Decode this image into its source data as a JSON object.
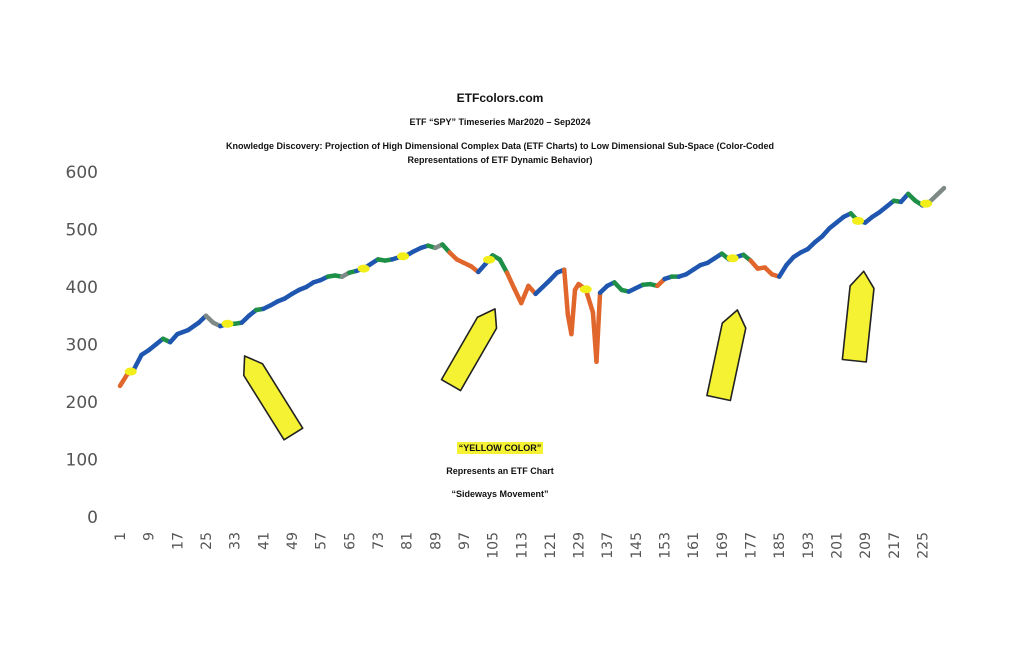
{
  "header": {
    "site": "ETFcolors.com",
    "subtitle": "ETF “SPY” Timeseries Mar2020 – Sep2024",
    "description": "Knowledge Discovery: Projection of High Dimensional Complex Data (ETF Charts) to Low Dimensional Sub-Space (Color-Coded Representations of ETF Dynamic Behavior)"
  },
  "annotation": {
    "label": "“YELLOW COLOR”",
    "line2": "Represents an ETF Chart",
    "line3": "“Sideways Movement”"
  },
  "colors": {
    "blue": "#1f56b0",
    "green": "#1e8f47",
    "orange": "#e0662c",
    "gray": "#7f8a86",
    "yellow": "#f5f233",
    "marker": "#f2ee1a"
  },
  "chart_data": {
    "type": "line",
    "ylim": [
      0,
      600
    ],
    "yticks": [
      0,
      100,
      200,
      300,
      400,
      500,
      600
    ],
    "xlim": [
      1,
      231
    ],
    "xticks": [
      1,
      9,
      17,
      25,
      33,
      41,
      49,
      57,
      65,
      73,
      81,
      89,
      97,
      105,
      113,
      121,
      129,
      137,
      145,
      153,
      161,
      169,
      177,
      185,
      193,
      201,
      209,
      217,
      225
    ],
    "series": [
      {
        "points": [
          [
            1,
            228
          ],
          [
            3,
            248
          ],
          [
            5,
            258
          ],
          [
            7,
            282
          ],
          [
            9,
            290
          ],
          [
            11,
            300
          ],
          [
            13,
            310
          ],
          [
            15,
            304
          ],
          [
            17,
            318
          ],
          [
            20,
            325
          ],
          [
            23,
            338
          ],
          [
            25,
            350
          ],
          [
            27,
            338
          ],
          [
            29,
            332
          ],
          [
            31,
            336
          ],
          [
            33,
            336
          ],
          [
            35,
            338
          ],
          [
            37,
            350
          ],
          [
            39,
            360
          ],
          [
            41,
            362
          ],
          [
            43,
            368
          ],
          [
            45,
            375
          ],
          [
            47,
            380
          ],
          [
            49,
            388
          ],
          [
            51,
            395
          ],
          [
            53,
            400
          ],
          [
            55,
            408
          ],
          [
            57,
            412
          ],
          [
            59,
            418
          ],
          [
            61,
            420
          ],
          [
            63,
            418
          ],
          [
            65,
            425
          ],
          [
            67,
            428
          ],
          [
            69,
            432
          ],
          [
            71,
            440
          ],
          [
            73,
            448
          ],
          [
            75,
            446
          ],
          [
            77,
            448
          ],
          [
            79,
            452
          ],
          [
            81,
            455
          ],
          [
            83,
            462
          ],
          [
            85,
            468
          ],
          [
            87,
            472
          ],
          [
            89,
            468
          ],
          [
            91,
            474
          ],
          [
            93,
            460
          ],
          [
            95,
            448
          ],
          [
            97,
            442
          ],
          [
            99,
            436
          ],
          [
            101,
            426
          ],
          [
            103,
            440
          ],
          [
            105,
            455
          ],
          [
            107,
            448
          ],
          [
            109,
            425
          ],
          [
            111,
            398
          ],
          [
            113,
            372
          ],
          [
            115,
            402
          ],
          [
            117,
            388
          ],
          [
            119,
            400
          ],
          [
            121,
            412
          ],
          [
            123,
            425
          ],
          [
            125,
            430
          ],
          [
            126,
            352
          ],
          [
            127,
            318
          ],
          [
            128,
            395
          ],
          [
            129,
            405
          ],
          [
            131,
            396
          ],
          [
            133,
            356
          ],
          [
            134,
            270
          ],
          [
            135,
            390
          ],
          [
            137,
            402
          ],
          [
            139,
            408
          ],
          [
            141,
            395
          ],
          [
            143,
            392
          ],
          [
            145,
            398
          ],
          [
            147,
            404
          ],
          [
            149,
            405
          ],
          [
            151,
            402
          ],
          [
            153,
            414
          ],
          [
            155,
            418
          ],
          [
            157,
            418
          ],
          [
            159,
            422
          ],
          [
            161,
            430
          ],
          [
            163,
            438
          ],
          [
            165,
            442
          ],
          [
            167,
            450
          ],
          [
            169,
            458
          ],
          [
            171,
            448
          ],
          [
            173,
            452
          ],
          [
            175,
            456
          ],
          [
            177,
            446
          ],
          [
            179,
            432
          ],
          [
            181,
            434
          ],
          [
            183,
            422
          ],
          [
            185,
            418
          ],
          [
            187,
            438
          ],
          [
            189,
            452
          ],
          [
            191,
            460
          ],
          [
            193,
            466
          ],
          [
            195,
            478
          ],
          [
            197,
            488
          ],
          [
            199,
            502
          ],
          [
            201,
            512
          ],
          [
            203,
            522
          ],
          [
            205,
            528
          ],
          [
            207,
            515
          ],
          [
            209,
            512
          ],
          [
            211,
            522
          ],
          [
            213,
            530
          ],
          [
            215,
            540
          ],
          [
            217,
            550
          ],
          [
            219,
            548
          ],
          [
            221,
            562
          ],
          [
            223,
            550
          ],
          [
            225,
            542
          ],
          [
            227,
            548
          ],
          [
            229,
            560
          ],
          [
            231,
            572
          ]
        ]
      }
    ],
    "highlight_markers_x": [
      4,
      31,
      69,
      80,
      104,
      131,
      172,
      207,
      226
    ]
  }
}
